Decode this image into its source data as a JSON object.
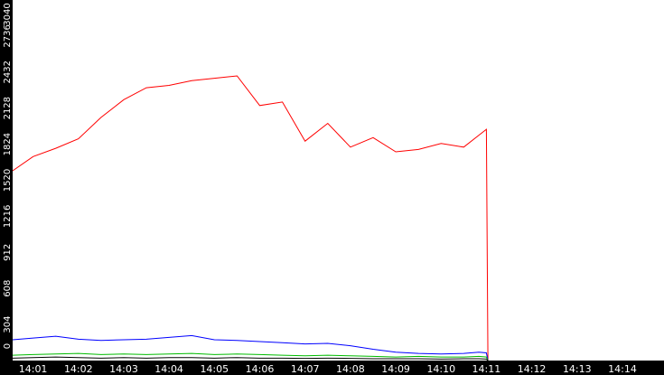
{
  "chart_data": {
    "type": "line",
    "title": "",
    "xlabel": "",
    "ylabel": "",
    "ylim": [
      0,
      3040
    ],
    "xlim": [
      "14:00:33",
      "14:14:55"
    ],
    "x_ticks": [
      "14:01",
      "14:02",
      "14:03",
      "14:04",
      "14:05",
      "14:06",
      "14:07",
      "14:08",
      "14:09",
      "14:10",
      "14:11",
      "14:12",
      "14:13",
      "14:14"
    ],
    "y_ticks": [
      "0",
      "304",
      "608",
      "912",
      "1216",
      "1520",
      "1824",
      "2128",
      "2432",
      "2736",
      "3040"
    ],
    "grid": false,
    "legend": "none",
    "x": [
      "14:00:33",
      "14:01:00",
      "14:01:30",
      "14:02:00",
      "14:02:30",
      "14:03:00",
      "14:03:30",
      "14:04:00",
      "14:04:30",
      "14:05:00",
      "14:05:30",
      "14:06:00",
      "14:06:30",
      "14:07:00",
      "14:07:30",
      "14:08:00",
      "14:08:30",
      "14:09:00",
      "14:09:30",
      "14:10:00",
      "14:10:30",
      "14:10:50",
      "14:11:00",
      "14:11:02"
    ],
    "series": [
      {
        "color": "#ff0000",
        "values": [
          1600,
          1720,
          1790,
          1870,
          2050,
          2200,
          2300,
          2320,
          2360,
          2380,
          2400,
          2150,
          2180,
          1850,
          2000,
          1800,
          1880,
          1760,
          1780,
          1830,
          1800,
          1900,
          1950,
          0
        ]
      },
      {
        "color": "#0000ff",
        "values": [
          175,
          190,
          205,
          180,
          170,
          175,
          180,
          195,
          210,
          175,
          170,
          160,
          150,
          140,
          145,
          125,
          95,
          70,
          60,
          55,
          60,
          70,
          65,
          0
        ]
      },
      {
        "color": "#00bb00",
        "values": [
          45,
          50,
          55,
          60,
          50,
          55,
          50,
          55,
          60,
          50,
          55,
          50,
          45,
          40,
          45,
          40,
          35,
          30,
          35,
          30,
          30,
          35,
          30,
          0
        ]
      },
      {
        "color": "#000000",
        "values": [
          20,
          25,
          30,
          25,
          20,
          25,
          20,
          25,
          25,
          20,
          25,
          20,
          20,
          18,
          20,
          18,
          15,
          15,
          15,
          12,
          15,
          15,
          12,
          0
        ]
      }
    ]
  }
}
